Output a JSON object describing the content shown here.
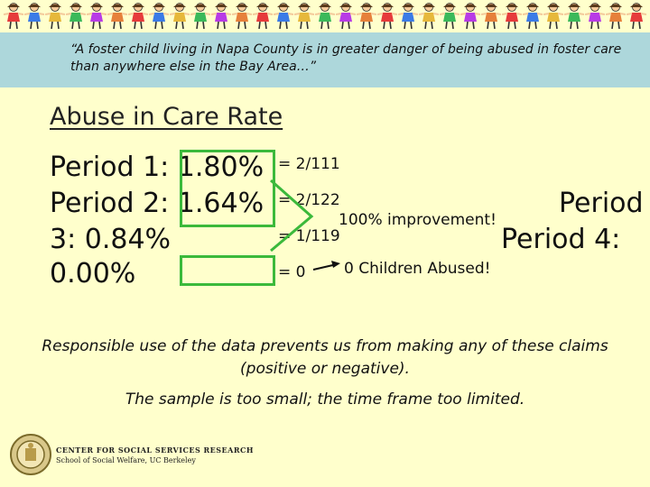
{
  "header": {
    "kids_decoration": "children-holding-hands-border"
  },
  "quote": {
    "text": "“A foster child living in Napa County is in greater danger of being abused in foster care than anywhere else in the Bay Area…”"
  },
  "title": "Abuse in Care Rate",
  "periods": {
    "line1": "Period 1:  1.80%",
    "line2": "Period 2:  1.64%",
    "line3": "3:  0.84%",
    "line4": "0.00%",
    "eq1": "= 2/111",
    "eq2": "= 2/122",
    "eq3": "= 1/119",
    "eq4": "= 0",
    "improvement": "100% improvement!",
    "children_abused": "0 Children Abused!",
    "period_word": "Period",
    "period4": "Period 4:"
  },
  "closing": {
    "line1": "Responsible use of the data prevents us from making any of these claims (positive or negative).",
    "line2": "The sample is too small; the time frame too limited."
  },
  "footer": {
    "org": "CENTER FOR SOCIAL SERVICES RESEARCH",
    "school": "School of Social Welfare, UC Berkeley"
  },
  "colors": {
    "background": "#ffffcc",
    "quote_band": "#add7db",
    "highlight_box": "#3bb93b"
  }
}
